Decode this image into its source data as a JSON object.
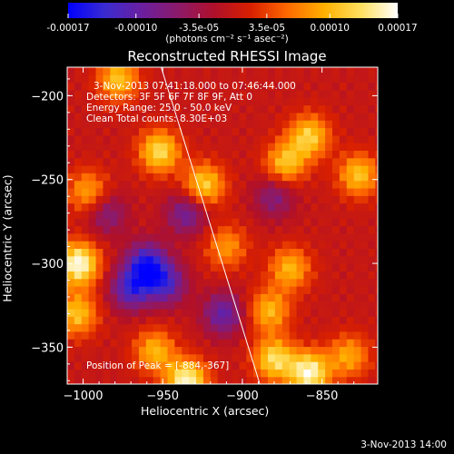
{
  "colorbar": {
    "ticks": [
      "-0.00017",
      "-0.00010",
      "-3.5e-05",
      "3.5e-05",
      "0.00010",
      "0.00017"
    ],
    "tick_values": [
      -0.00017,
      -0.0001,
      -3.5e-05,
      3.5e-05,
      0.0001,
      0.00017
    ],
    "range": [
      -0.00017,
      0.00017
    ],
    "unit": "(photons cm⁻² s⁻¹ asec⁻²)",
    "colormap": [
      "#0000ff",
      "#3a2bd0",
      "#6a1fa0",
      "#8c1a6a",
      "#b0102a",
      "#d82000",
      "#ff6a00",
      "#ffb000",
      "#ffe060",
      "#ffffff"
    ]
  },
  "title": "Reconstructed RHESSI Image",
  "info": {
    "line1": "3-Nov-2013 07:41:18.000 to 07:46:44.000",
    "line2": "Detectors: 3F 5F 6F 7F 8F 9F, Att 0",
    "line3": "Energy Range: 25.0 - 50.0 keV",
    "line4": "Clean    Total counts: 8.30E+03"
  },
  "peak": "Position of Peak = [-884,-367]",
  "timestamp": "3-Nov-2013 14:00",
  "chart_data": {
    "type": "heatmap",
    "title": "Reconstructed RHESSI Image",
    "xlabel": "Heliocentric X (arcsec)",
    "ylabel": "Heliocentric Y (arcsec)",
    "xlim": [
      -1010,
      -815
    ],
    "ylim": [
      -372,
      -183
    ],
    "x_ticks": [
      -1000,
      -950,
      -900,
      -850
    ],
    "x_tick_labels": [
      "−1000",
      "−950",
      "−900",
      "−850"
    ],
    "y_ticks": [
      -200,
      -250,
      -300,
      -350
    ],
    "y_tick_labels": [
      "−200",
      "−250",
      "−300",
      "−350"
    ],
    "value_range": [
      -0.00017,
      0.00017
    ],
    "grid": false,
    "limb_line": [
      [
        -951,
        -183
      ],
      [
        -889,
        -372
      ]
    ],
    "hot_spots": [
      {
        "x": -952,
        "y": -233,
        "v": 0.00013
      },
      {
        "x": -978,
        "y": -190,
        "v": 0.00011
      },
      {
        "x": -924,
        "y": -253,
        "v": 0.00012
      },
      {
        "x": -873,
        "y": -240,
        "v": 0.00011
      },
      {
        "x": -858,
        "y": -224,
        "v": 0.00012
      },
      {
        "x": -827,
        "y": -247,
        "v": 0.00011
      },
      {
        "x": -1003,
        "y": -300,
        "v": 0.00017
      },
      {
        "x": -1004,
        "y": -330,
        "v": 0.00011
      },
      {
        "x": -997,
        "y": -257,
        "v": 9e-05
      },
      {
        "x": -870,
        "y": -303,
        "v": 0.0001
      },
      {
        "x": -883,
        "y": -328,
        "v": 0.0001
      },
      {
        "x": -955,
        "y": -352,
        "v": 0.0001
      },
      {
        "x": -935,
        "y": -370,
        "v": 0.00016
      },
      {
        "x": -880,
        "y": -357,
        "v": 0.00013
      },
      {
        "x": -858,
        "y": -365,
        "v": 0.00016
      },
      {
        "x": -833,
        "y": -355,
        "v": 9e-05
      },
      {
        "x": -910,
        "y": -290,
        "v": 8e-05
      }
    ],
    "cold_spots": [
      {
        "x": -960,
        "y": -300,
        "v": -0.00014
      },
      {
        "x": -970,
        "y": -315,
        "v": -0.00012
      },
      {
        "x": -948,
        "y": -312,
        "v": -0.00011
      },
      {
        "x": -912,
        "y": -330,
        "v": -0.0001
      },
      {
        "x": -935,
        "y": -270,
        "v": -9e-05
      },
      {
        "x": -985,
        "y": -270,
        "v": -7e-05
      },
      {
        "x": -880,
        "y": -260,
        "v": -7e-05
      }
    ],
    "peak_position": [
      -884,
      -367
    ]
  }
}
